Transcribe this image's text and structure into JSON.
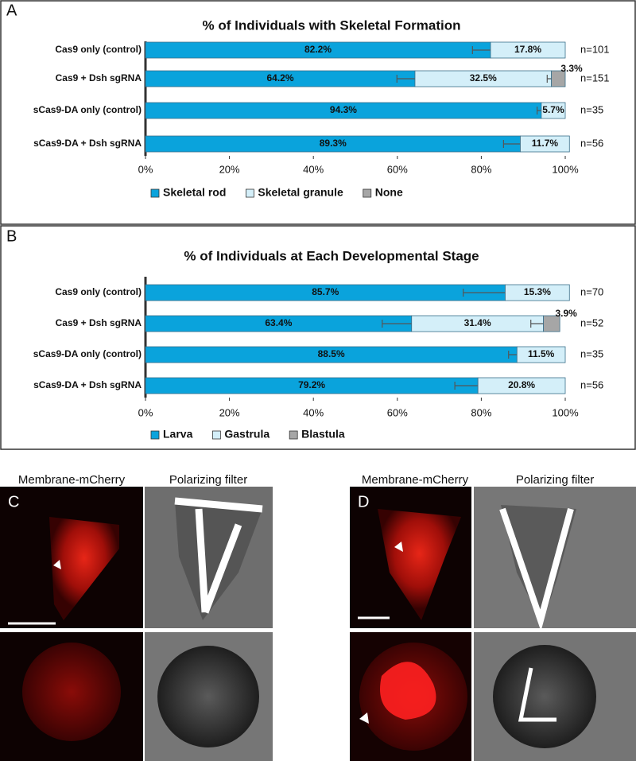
{
  "chart_data": [
    {
      "type": "stacked-barh",
      "panel_label": "A",
      "title": "% of Individuals with Skeletal Formation",
      "categories": [
        "Cas9 only (control)",
        "Cas9 + Dsh sgRNA",
        "sCas9-DA only (control)",
        "sCas9-DA + Dsh sgRNA"
      ],
      "n_labels": [
        "n=101",
        "n=151",
        "n=35",
        "n=56"
      ],
      "series": [
        {
          "name": "Skeletal rod",
          "color": "#0aa3dc",
          "values": [
            82.2,
            64.2,
            94.3,
            89.3
          ],
          "value_labels": [
            "82.2%",
            "64.2%",
            "94.3%",
            "89.3%"
          ],
          "errors": [
            4.3,
            4.3,
            1,
            4
          ]
        },
        {
          "name": "Skeletal granule",
          "color": "#d4eff9",
          "values": [
            17.8,
            32.5,
            5.7,
            11.7
          ],
          "value_labels": [
            "17.8%",
            "32.5%",
            "5.7%",
            "11.7%"
          ],
          "errors": [
            null,
            1,
            null,
            null
          ]
        },
        {
          "name": "None",
          "color": "#a6a6a6",
          "values": [
            null,
            3.3,
            null,
            null
          ],
          "value_labels": [
            null,
            "3.3%",
            null,
            null
          ]
        }
      ],
      "xlim": [
        0,
        100
      ],
      "xticks": [
        {
          "value": 0,
          "label": "0%"
        },
        {
          "value": 20,
          "label": "20%"
        },
        {
          "value": 40,
          "label": "40%"
        },
        {
          "value": 60,
          "label": "60%"
        },
        {
          "value": 80,
          "label": "80%"
        },
        {
          "value": 100,
          "label": "100%"
        }
      ]
    },
    {
      "type": "stacked-barh",
      "panel_label": "B",
      "title": "% of Individuals at Each Developmental Stage",
      "categories": [
        "Cas9 only (control)",
        "Cas9 + Dsh sgRNA",
        "sCas9-DA only (control)",
        "sCas9-DA + Dsh sgRNA"
      ],
      "n_labels": [
        "n=70",
        "n=52",
        "n=35",
        "n=56"
      ],
      "series": [
        {
          "name": "Larva",
          "color": "#0aa3dc",
          "values": [
            85.7,
            63.4,
            88.5,
            79.2
          ],
          "value_labels": [
            "85.7%",
            "63.4%",
            "88.5%",
            "79.2%"
          ],
          "errors": [
            10,
            7,
            2,
            5.5
          ]
        },
        {
          "name": "Gastrula",
          "color": "#d4eff9",
          "values": [
            15.3,
            31.4,
            11.5,
            20.8
          ],
          "value_labels": [
            "15.3%",
            "31.4%",
            "11.5%",
            "20.8%"
          ],
          "errors": [
            null,
            3,
            null,
            null
          ]
        },
        {
          "name": "Blastula",
          "color": "#a6a6a6",
          "values": [
            null,
            3.9,
            null,
            null
          ],
          "value_labels": [
            null,
            "3.9%",
            null,
            null
          ]
        }
      ],
      "xlim": [
        0,
        100
      ],
      "xticks": [
        {
          "value": 0,
          "label": "0%"
        },
        {
          "value": 20,
          "label": "20%"
        },
        {
          "value": 40,
          "label": "40%"
        },
        {
          "value": 60,
          "label": "60%"
        },
        {
          "value": 80,
          "label": "80%"
        },
        {
          "value": 100,
          "label": "100%"
        }
      ]
    }
  ],
  "panels": [
    {
      "label": "C",
      "channels": [
        "Membrane-mCherry",
        "Polarizing filter"
      ]
    },
    {
      "label": "D",
      "channels": [
        "Membrane-mCherry",
        "Polarizing filter"
      ]
    }
  ]
}
